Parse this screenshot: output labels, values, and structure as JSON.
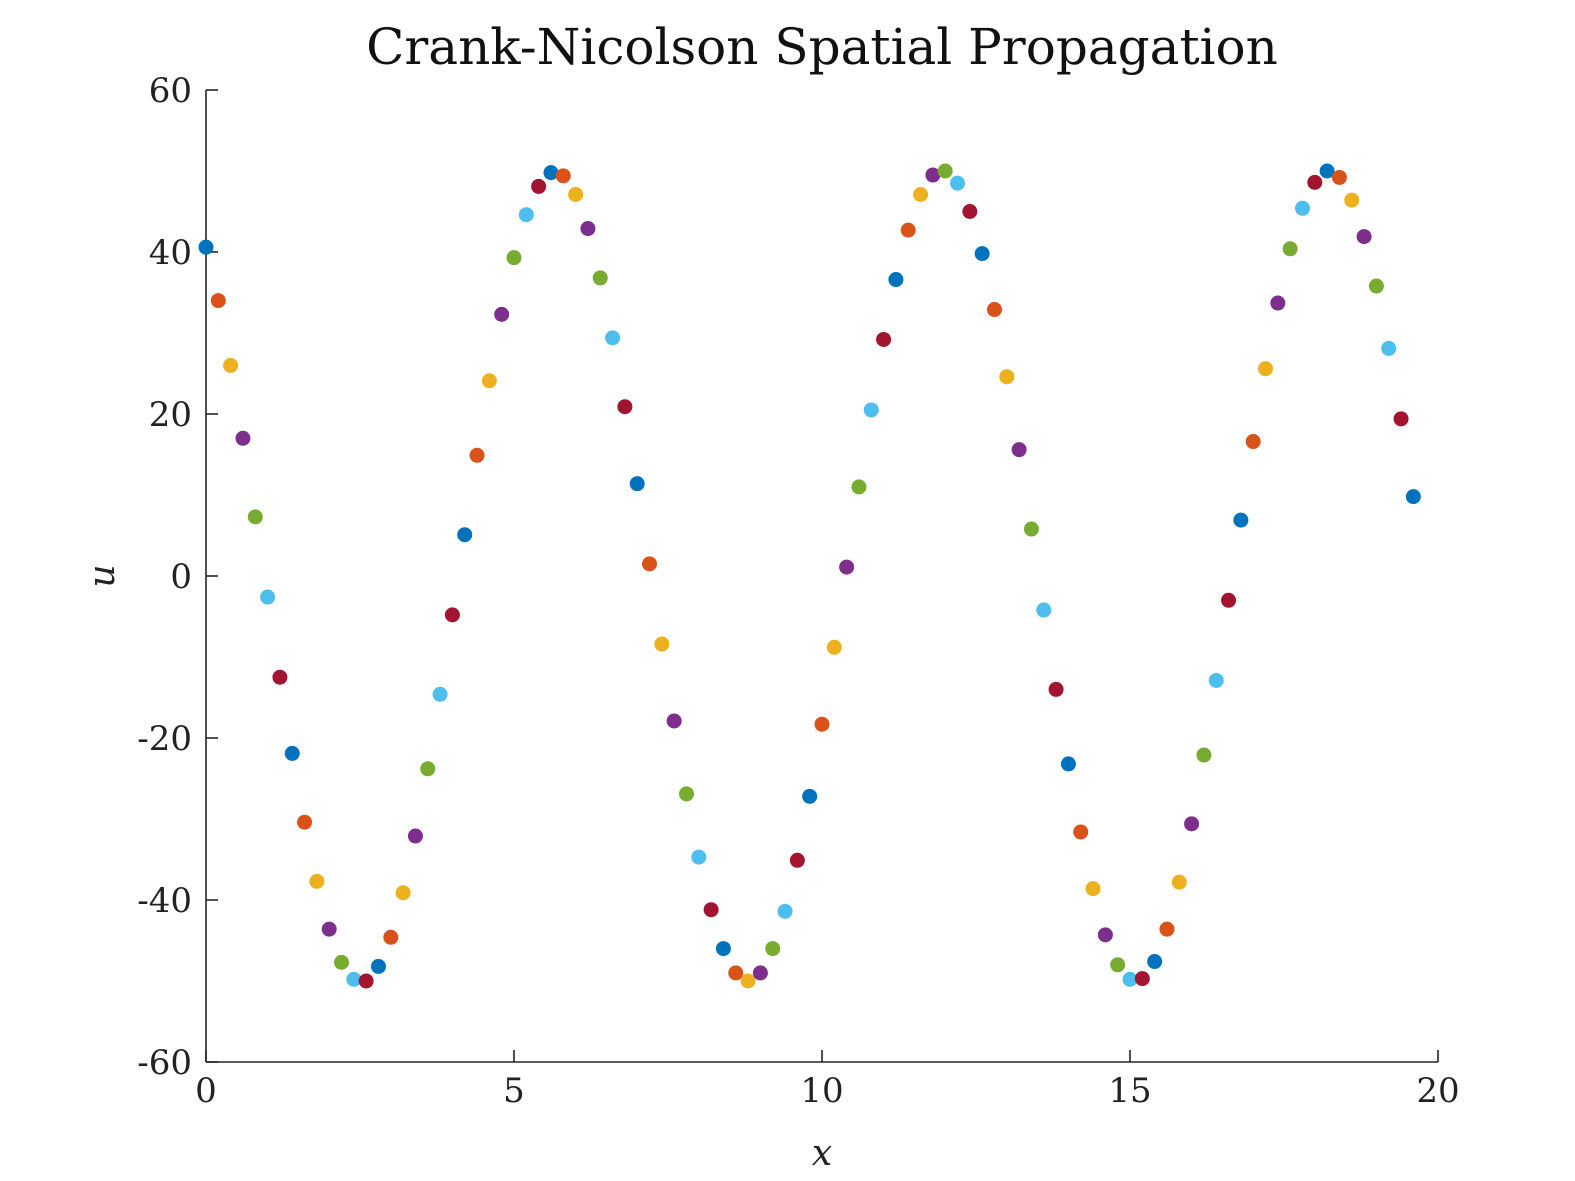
{
  "chart_data": {
    "type": "scatter",
    "title": "Crank-Nicolson Spatial Propagation",
    "xlabel": "x",
    "ylabel": "u",
    "xlim": [
      0,
      20
    ],
    "ylim": [
      -60,
      60
    ],
    "xticks": [
      0,
      5,
      10,
      15,
      20
    ],
    "yticks": [
      -60,
      -40,
      -20,
      0,
      20,
      40,
      60
    ],
    "x_tick_labels": [
      "0",
      "5",
      "10",
      "15",
      "20"
    ],
    "y_tick_labels": [
      "-60",
      "-40",
      "-20",
      "0",
      "20",
      "40",
      "60"
    ],
    "grid": false,
    "legend": "none",
    "color_cycle": [
      "#0072BD",
      "#D95319",
      "#EDB120",
      "#7E2F8E",
      "#77AC30",
      "#4DBEEE",
      "#A2142F"
    ],
    "x": [
      0.0,
      0.2,
      0.4,
      0.6,
      0.8,
      1.0,
      1.2,
      1.4,
      1.6,
      1.8,
      2.0,
      2.2,
      2.4,
      2.6,
      2.8,
      3.0,
      3.2,
      3.4,
      3.6,
      3.8,
      4.0,
      4.2,
      4.4,
      4.6,
      4.8,
      5.0,
      5.2,
      5.4,
      5.6,
      5.8,
      6.0,
      6.2,
      6.4,
      6.6,
      6.8,
      7.0,
      7.2,
      7.4,
      7.6,
      7.8,
      8.0,
      8.2,
      8.4,
      8.6,
      8.8,
      9.0,
      9.2,
      9.4,
      9.6,
      9.8,
      10.0,
      10.2,
      10.4,
      10.6,
      10.8,
      11.0,
      11.2,
      11.4,
      11.6,
      11.8,
      12.0,
      12.2,
      12.4,
      12.6,
      12.8,
      13.0,
      13.2,
      13.4,
      13.6,
      13.8,
      14.0,
      14.2,
      14.4,
      14.6,
      14.8,
      15.0,
      15.2,
      15.4,
      15.6,
      15.8,
      16.0,
      16.2,
      16.4,
      16.6,
      16.8,
      17.0,
      17.2,
      17.4,
      17.6,
      17.8,
      18.0,
      18.2,
      18.4,
      18.6,
      18.8,
      19.0,
      19.2,
      19.4,
      19.6
    ],
    "y": [
      40.6,
      34.0,
      26.0,
      17.0,
      7.3,
      -2.6,
      -12.5,
      -21.9,
      -30.4,
      -37.7,
      -43.6,
      -47.7,
      -49.8,
      -50.0,
      -48.2,
      -44.6,
      -39.1,
      -32.1,
      -23.8,
      -14.6,
      -4.8,
      5.1,
      14.9,
      24.1,
      32.3,
      39.3,
      44.6,
      48.1,
      49.8,
      49.4,
      47.1,
      42.9,
      36.8,
      29.4,
      20.9,
      11.4,
      1.5,
      -8.4,
      -17.9,
      -26.9,
      -34.7,
      -41.2,
      -46.0,
      -49.0,
      -50.0,
      -49.0,
      -46.0,
      -41.4,
      -35.1,
      -27.2,
      -18.3,
      -8.8,
      1.1,
      11.0,
      20.5,
      29.2,
      36.6,
      42.7,
      47.1,
      49.5,
      50.0,
      48.5,
      45.0,
      39.8,
      32.9,
      24.6,
      15.6,
      5.8,
      -4.2,
      -14.0,
      -23.2,
      -31.6,
      -38.6,
      -44.3,
      -48.0,
      -49.8,
      -49.7,
      -47.6,
      -43.6,
      -37.8,
      -30.6,
      -22.1,
      -12.9,
      -3.0,
      6.9,
      16.6,
      25.6,
      33.7,
      40.4,
      45.4,
      48.6,
      50.0,
      49.2,
      46.4,
      41.9,
      35.8,
      28.1,
      19.4,
      9.8
    ]
  }
}
